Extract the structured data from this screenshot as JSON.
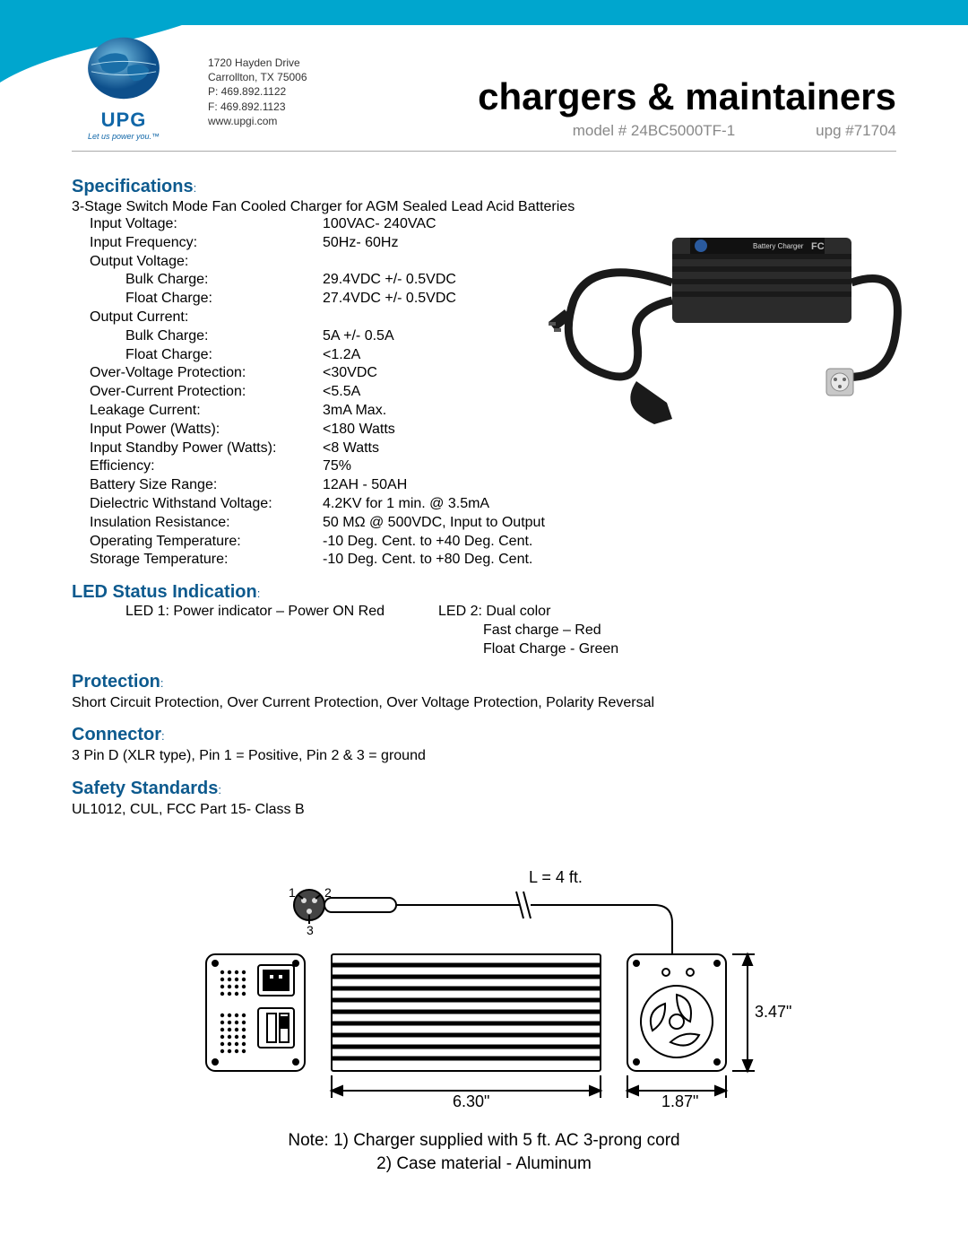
{
  "header": {
    "bar_color": "#00a6ce",
    "accent_color": "#0d5a8e",
    "address": {
      "street": "1720 Hayden Drive",
      "city": "Carrollton, TX 75006",
      "phone": "P: 469.892.1122",
      "fax": "F: 469.892.1123",
      "web": "www.upgi.com"
    },
    "logo": {
      "text": "UPG",
      "tagline": "Let us power you.™",
      "color": "#1167a8"
    },
    "title": "chargers & maintainers",
    "model_label": "model # 24BC5000TF-1",
    "upg_label": "upg #71704"
  },
  "specs": {
    "heading": "Specifications",
    "description": "3-Stage Switch Mode Fan Cooled Charger for AGM Sealed Lead Acid Batteries",
    "rows": [
      {
        "label": "Input Voltage:",
        "value": "100VAC- 240VAC",
        "indent": false
      },
      {
        "label": "Input Frequency:",
        "value": "50Hz- 60Hz",
        "indent": false
      },
      {
        "label": "Output Voltage:",
        "value": "",
        "indent": false
      },
      {
        "label": "Bulk Charge:",
        "value": "29.4VDC +/- 0.5VDC",
        "indent": true
      },
      {
        "label": "Float Charge:",
        "value": "27.4VDC +/- 0.5VDC",
        "indent": true
      },
      {
        "label": "Output Current:",
        "value": "",
        "indent": false
      },
      {
        "label": "Bulk Charge:",
        "value": "5A +/- 0.5A",
        "indent": true
      },
      {
        "label": "Float Charge:",
        "value": "<1.2A",
        "indent": true
      },
      {
        "label": "Over-Voltage Protection:",
        "value": "<30VDC",
        "indent": false
      },
      {
        "label": "Over-Current Protection:",
        "value": "<5.5A",
        "indent": false
      },
      {
        "label": "Leakage Current:",
        "value": "3mA Max.",
        "indent": false
      },
      {
        "label": "Input Power (Watts):",
        "value": "<180 Watts",
        "indent": false
      },
      {
        "label": "Input Standby Power (Watts):",
        "value": "<8 Watts",
        "indent": false
      },
      {
        "label": "Efficiency:",
        "value": "75%",
        "indent": false
      },
      {
        "label": "Battery Size Range:",
        "value": "12AH - 50AH",
        "indent": false
      },
      {
        "label": "Dielectric Withstand Voltage:",
        "value": "4.2KV for 1 min. @ 3.5mA",
        "indent": false
      },
      {
        "label": "Insulation Resistance:",
        "value": "50 MΩ @ 500VDC, Input to Output",
        "indent": false
      },
      {
        "label": "Operating Temperature:",
        "value": "-10 Deg. Cent. to +40 Deg. Cent.",
        "indent": false
      },
      {
        "label": "Storage Temperature:",
        "value": "-10 Deg. Cent. to +80 Deg. Cent.",
        "indent": false
      }
    ]
  },
  "led": {
    "heading": "LED Status Indication",
    "col1": [
      "LED 1: Power indicator – Power ON Red"
    ],
    "col2": [
      "LED 2: Dual color",
      "Fast charge – Red",
      "Float Charge - Green"
    ]
  },
  "protection": {
    "heading": "Protection",
    "text": "Short Circuit Protection, Over Current Protection, Over Voltage Protection, Polarity Reversal"
  },
  "connector": {
    "heading": "Connector",
    "text": "3 Pin D (XLR type), Pin 1 = Positive, Pin 2 & 3 = ground"
  },
  "safety": {
    "heading": "Safety Standards",
    "text": "UL1012, CUL, FCC Part 15- Class B"
  },
  "diagram": {
    "cable_length": "L = 4 ft.",
    "width_label": "6.30\"",
    "depth_label": "1.87\"",
    "height_label": "3.47\"",
    "pin1": "1",
    "pin2": "2",
    "pin3": "3",
    "stroke_color": "#000000",
    "stroke_width": 2
  },
  "notes": {
    "line1": "Note: 1) Charger supplied with 5 ft. AC 3-prong cord",
    "line2": "2) Case material - Aluminum"
  }
}
